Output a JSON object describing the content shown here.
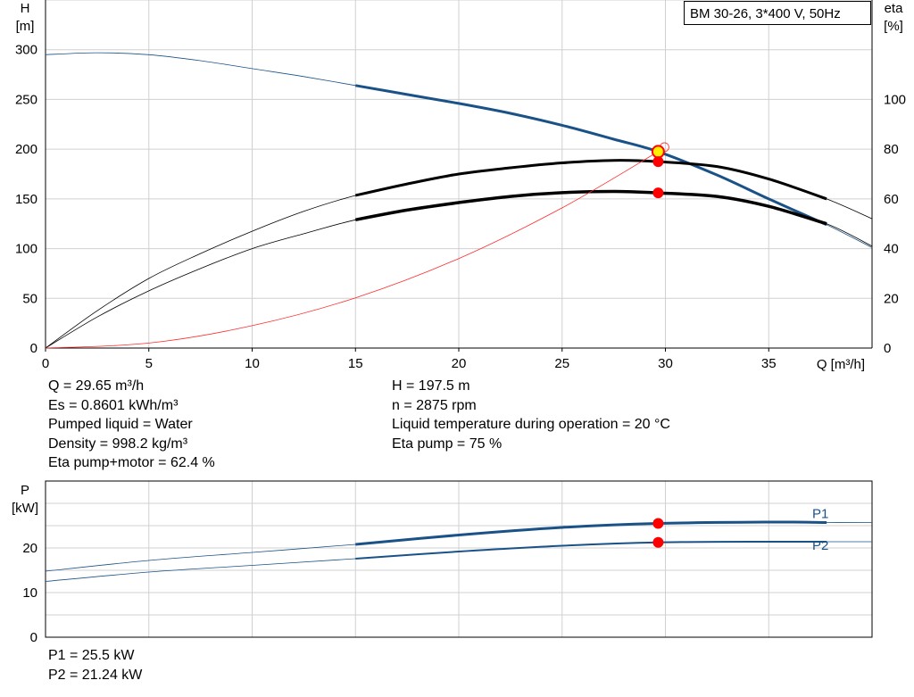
{
  "header": {
    "title": "BM 30-26, 3*400 V, 50Hz"
  },
  "chart_data": [
    {
      "type": "line",
      "title": "BM 30-26, 3*400 V, 50Hz",
      "xlabel": "Q [m³/h]",
      "ylabel": "H [m]",
      "ylabel_unit_line1": "H",
      "ylabel_unit_line2": "[m]",
      "y2label_line1": "eta",
      "y2label_line2": "[%]",
      "xlim": [
        0,
        40
      ],
      "ylim": [
        0,
        350
      ],
      "y2lim": [
        0,
        140
      ],
      "xticks": [
        0,
        5,
        10,
        15,
        20,
        25,
        30,
        35
      ],
      "yticks": [
        0,
        50,
        100,
        150,
        200,
        250,
        300
      ],
      "y2ticks": [
        0,
        20,
        40,
        60,
        80,
        100
      ],
      "grid": true,
      "colors": {
        "head": "#1a5288",
        "eta": "#000000",
        "system": "#ff2a2a",
        "grid": "#d0d0d0",
        "dot": "#ff0000",
        "dot_highlight": "#ffee00"
      },
      "series": [
        {
          "key": "H",
          "axis": "left",
          "color": "#1a5288",
          "x": [
            0,
            2.5,
            5,
            7.5,
            10,
            12.5,
            15,
            17.5,
            20,
            22.5,
            25,
            27.5,
            29.65,
            32.5,
            35,
            37.8,
            40
          ],
          "y": [
            295,
            297,
            295,
            289,
            281,
            273,
            264,
            255,
            246,
            236,
            224,
            210,
            197.5,
            174,
            150,
            124,
            101
          ],
          "bold_range": [
            15,
            37.8
          ]
        },
        {
          "key": "eta_pump",
          "axis": "right",
          "color": "#000000",
          "x": [
            0,
            2.5,
            5,
            7.5,
            10,
            12.5,
            15,
            17.5,
            20,
            22.5,
            25,
            27.5,
            29.65,
            32.5,
            35,
            37.8,
            40
          ],
          "y": [
            0,
            15,
            28,
            38,
            47,
            55,
            61.4,
            66,
            70,
            72.5,
            74.5,
            75.5,
            75,
            73,
            68,
            60,
            52
          ],
          "bold_range": [
            15,
            37.8
          ]
        },
        {
          "key": "eta_pump_motor",
          "axis": "right",
          "color": "#000000",
          "x": [
            0,
            2.5,
            5,
            7.5,
            10,
            12.5,
            15,
            17.5,
            20,
            22.5,
            25,
            27.5,
            29.65,
            32.5,
            35,
            37.8,
            40
          ],
          "y": [
            0,
            12.5,
            23,
            32,
            40,
            46,
            51.6,
            55.5,
            58.5,
            61,
            62.5,
            63,
            62.4,
            61,
            57,
            50,
            41
          ],
          "bold_range": [
            15,
            37.8
          ]
        },
        {
          "key": "system",
          "axis": "left",
          "color": "#ff2a2a",
          "x": [
            0,
            5,
            10,
            15,
            20,
            25,
            29.65
          ],
          "y": [
            0,
            5,
            22.5,
            50.5,
            90,
            141,
            197.5
          ]
        }
      ],
      "points": [
        {
          "x": 29.65,
          "y": 197.5,
          "axis": "left",
          "highlight": true
        },
        {
          "x": 29.65,
          "y": 75,
          "axis": "right"
        },
        {
          "x": 29.65,
          "y": 62.4,
          "axis": "right"
        }
      ]
    },
    {
      "type": "line",
      "xlabel": "",
      "ylabel_unit_line1": "P",
      "ylabel_unit_line2": "[kW]",
      "xlim": [
        0,
        40
      ],
      "ylim": [
        0,
        35
      ],
      "yticks": [
        0,
        10,
        20
      ],
      "xticks": [
        0,
        5,
        10,
        15,
        20,
        25,
        30,
        35
      ],
      "grid": true,
      "series": [
        {
          "name": "P1",
          "color": "#1a5288",
          "x": [
            0,
            5,
            10,
            15,
            20,
            25,
            29.65,
            35,
            37.8,
            40
          ],
          "y": [
            14.8,
            17.2,
            19.0,
            20.8,
            22.9,
            24.6,
            25.5,
            25.8,
            25.7,
            25.7
          ],
          "bold_range": [
            15,
            37.8
          ]
        },
        {
          "name": "P2",
          "color": "#1a5288",
          "x": [
            0,
            5,
            10,
            15,
            20,
            25,
            29.65,
            35,
            37.8,
            40
          ],
          "y": [
            12.5,
            14.6,
            16.1,
            17.6,
            19.2,
            20.5,
            21.24,
            21.4,
            21.4,
            21.4
          ],
          "bold_range": [
            15,
            37.8
          ]
        }
      ],
      "points": [
        {
          "x": 29.65,
          "y": 25.5
        },
        {
          "x": 29.65,
          "y": 21.24
        }
      ]
    }
  ],
  "info_left": [
    "Q = 29.65 m³/h",
    "Es = 0.8601 kWh/m³",
    "Pumped liquid = Water",
    "Density = 998.2 kg/m³",
    "Eta pump+motor = 62.4 %"
  ],
  "info_right": [
    "H = 197.5 m",
    "n = 2875 rpm",
    "Liquid temperature during operation = 20 °C",
    "Eta pump = 75 %"
  ],
  "info_power": [
    "P1 = 25.5 kW",
    "P2 = 21.24 kW"
  ]
}
